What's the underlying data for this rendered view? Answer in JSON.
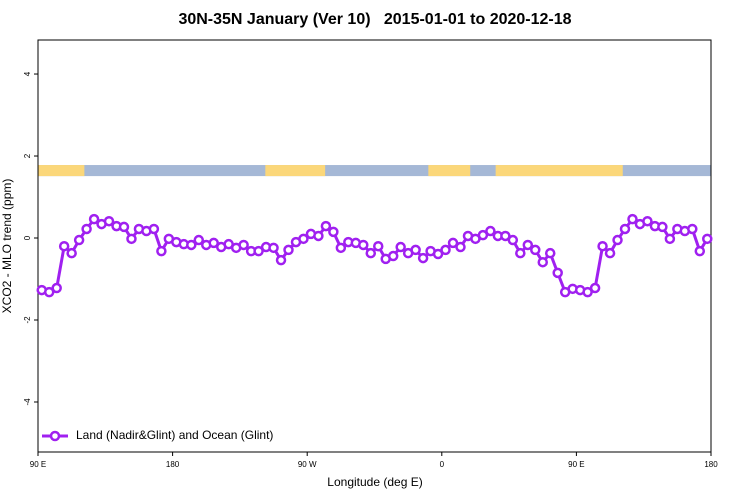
{
  "chart_data": {
    "type": "line",
    "title": "30N-35N January (Ver 10)   2015-01-01 to 2020-12-18",
    "x_label": "Longitude (deg E)",
    "y_label": "XCO2 - MLO trend (ppm)",
    "xlim": [
      90,
      540
    ],
    "ylim": [
      -5.22,
      4.83
    ],
    "xticks": [
      {
        "value": 90,
        "label": "90 E"
      },
      {
        "value": 180,
        "label": "180"
      },
      {
        "value": 270,
        "label": "90 W"
      },
      {
        "value": 360,
        "label": "0"
      },
      {
        "value": 450,
        "label": "90 E"
      },
      {
        "value": 540,
        "label": "180"
      }
    ],
    "yticks": [
      -4,
      -2,
      0,
      2,
      4
    ],
    "land_ranges": [
      [
        90,
        121
      ],
      [
        242,
        282
      ],
      [
        351,
        379
      ],
      [
        396,
        481
      ]
    ],
    "band_ylim": [
      1.51,
      1.78
    ],
    "land_color": "#fbd77a",
    "ocean_color": "#a5b8d6",
    "legend": "bottom-left",
    "x": [
      92.5,
      97.5,
      102.5,
      107.5,
      112.5,
      117.5,
      122.5,
      127.5,
      132.5,
      137.5,
      142.5,
      147.5,
      152.5,
      157.5,
      162.5,
      167.5,
      172.5,
      177.5,
      182.5,
      187.5,
      192.5,
      197.5,
      202.5,
      207.5,
      212.5,
      217.5,
      222.5,
      227.5,
      232.5,
      237.5,
      242.5,
      247.5,
      252.5,
      257.5,
      262.5,
      267.5,
      272.5,
      277.5,
      282.5,
      287.5,
      292.5,
      297.5,
      302.5,
      307.5,
      312.5,
      317.5,
      322.5,
      327.5,
      332.5,
      337.5,
      342.5,
      347.5,
      352.5,
      357.5,
      362.5,
      367.5,
      372.5,
      377.5,
      382.5,
      387.5,
      392.5,
      397.5,
      402.5,
      407.5,
      412.5,
      417.5,
      422.5,
      427.5,
      432.5,
      437.5,
      442.5,
      447.5,
      452.5,
      457.5,
      462.5,
      467.5,
      472.5,
      477.5,
      482.5,
      487.5,
      492.5,
      497.5,
      502.5,
      507.5,
      512.5,
      517.5,
      522.5,
      527.5,
      532.5,
      537.5
    ],
    "series": [
      {
        "name": "Land (Nadir&Glint) and Ocean (Glint)",
        "color": "#a020f0",
        "values": [
          -1.27,
          -1.32,
          -1.22,
          -0.2,
          -0.37,
          -0.05,
          0.22,
          0.46,
          0.34,
          0.41,
          0.29,
          0.27,
          -0.02,
          0.22,
          0.17,
          0.22,
          -0.32,
          -0.02,
          -0.1,
          -0.15,
          -0.17,
          -0.05,
          -0.17,
          -0.12,
          -0.22,
          -0.15,
          -0.24,
          -0.17,
          -0.32,
          -0.32,
          -0.22,
          -0.24,
          -0.54,
          -0.29,
          -0.1,
          -0.02,
          0.1,
          0.05,
          0.29,
          0.15,
          -0.24,
          -0.1,
          -0.12,
          -0.17,
          -0.37,
          -0.2,
          -0.51,
          -0.44,
          -0.22,
          -0.37,
          -0.29,
          -0.49,
          -0.32,
          -0.39,
          -0.29,
          -0.12,
          -0.22,
          0.05,
          -0.02,
          0.07,
          0.17,
          0.05,
          0.05,
          -0.05,
          -0.37,
          -0.17,
          -0.29,
          -0.59,
          -0.37,
          -0.85,
          -1.32,
          -1.24,
          -1.27,
          -1.32,
          -1.22,
          -0.2,
          -0.37,
          -0.05,
          0.22,
          0.46,
          0.34,
          0.41,
          0.29,
          0.27,
          -0.02,
          0.22,
          0.17,
          0.22,
          -0.32,
          -0.02
        ]
      }
    ]
  }
}
